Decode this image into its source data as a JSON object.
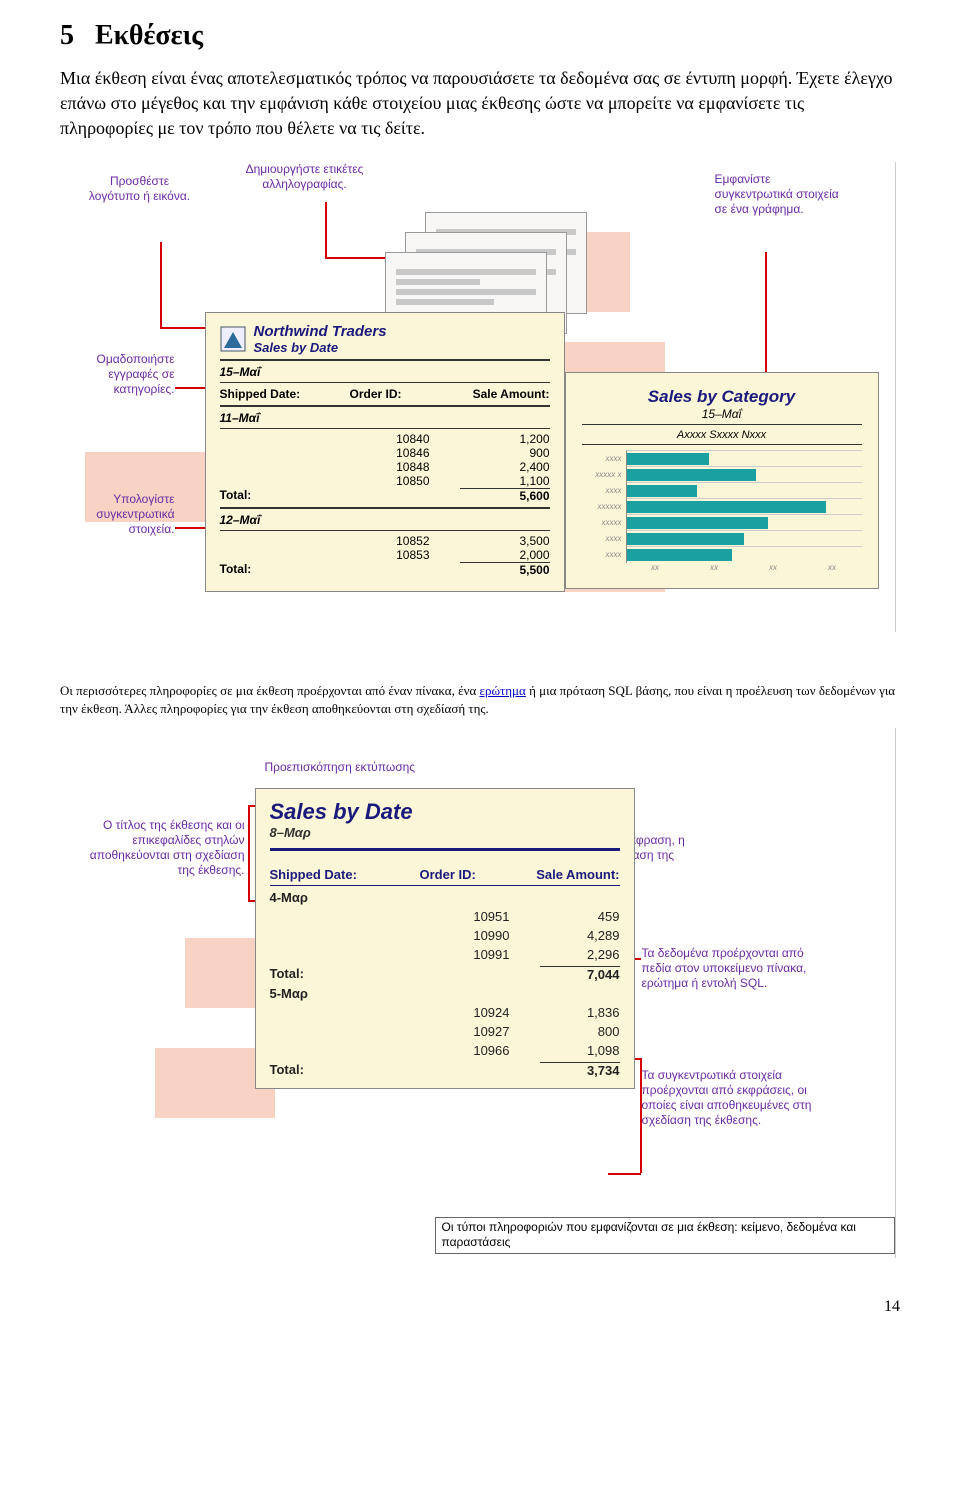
{
  "heading_num": "5",
  "heading_text": "Εκθέσεις",
  "body": "Μια έκθεση είναι ένας αποτελεσματικός τρόπος να παρουσιάσετε τα δεδομένα σας σε έντυπη μορφή. Έχετε έλεγχο επάνω στο μέγεθος και την εμφάνιση κάθε στοιχείου μιας έκθεσης ώστε να μπορείτε να εμφανίσετε τις πληροφορίες με τον τρόπο που θέλετε να τις δείτε.",
  "fig1": {
    "callouts": {
      "logo": "Προσθέστε λογότυπο ή εικόνα.",
      "labels": "Δημιουργήστε ετικέτες αλληλογραφίας.",
      "chart": "Εμφανίστε συγκεντρωτικά στοιχεία σε ένα γράφημα.",
      "group": "Ομαδοποιήστε εγγραφές σε κατηγορίες.",
      "totals": "Υπολογίστε συγκεντρωτικά στοιχεία."
    },
    "report": {
      "title1": "Northwind Traders",
      "title2": "Sales by Date",
      "date": "15–Μαΐ",
      "col1": "Shipped Date:",
      "col2": "Order ID:",
      "col3": "Sale Amount:",
      "g1": {
        "date": "11–Μαΐ",
        "rows": [
          {
            "id": "10840",
            "amt": "1,200"
          },
          {
            "id": "10846",
            "amt": "900"
          },
          {
            "id": "10848",
            "amt": "2,400"
          },
          {
            "id": "10850",
            "amt": "1,100"
          }
        ],
        "total_label": "Total:",
        "total": "5,600"
      },
      "g2": {
        "date": "12–Μαΐ",
        "rows": [
          {
            "id": "10852",
            "amt": "3,500"
          },
          {
            "id": "10853",
            "amt": "2,000"
          }
        ],
        "total_label": "Total:",
        "total": "5,500"
      }
    },
    "chartcard": {
      "title": "Sales by Category",
      "sub": "15–Μαΐ",
      "legend": "Axxxx Sxxxx Nxxx",
      "colors": {
        "bar": "#1aa0a0",
        "bg": "#fcf6d9"
      },
      "bars": [
        {
          "label": "xxxx",
          "pct": 35
        },
        {
          "label": "xxxxx x",
          "pct": 55
        },
        {
          "label": "xxxx",
          "pct": 30
        },
        {
          "label": "xxxxxx",
          "pct": 85
        },
        {
          "label": "xxxxx",
          "pct": 60
        },
        {
          "label": "xxxx",
          "pct": 50
        },
        {
          "label": "xxxx",
          "pct": 45
        }
      ],
      "xticks": [
        "xx",
        "xx",
        "xx",
        "xx"
      ]
    }
  },
  "para2_pre": "Οι περισσότερες πληροφορίες σε μια έκθεση προέρχονται από έναν πίνακα, ένα ",
  "para2_link": "ερώτημα",
  "para2_post": " ή μια πρόταση SQL βάσης, που είναι η προέλευση των δεδομένων για την έκθεση. Άλλες πληροφορίες για την έκθεση αποθηκεύονται στη σχεδίασή της.",
  "fig2": {
    "prev_label": "Προεπισκόπηση εκτύπωσης",
    "callouts": {
      "title": "Ο τίτλος της έκθεσης και οι επικεφαλίδες στηλών αποθηκεύονται στη σχεδίαση της έκθεσης.",
      "date": "Η ημερομηνία προέρχεται από μια έκφραση, η οποία είναι αποθηκευμένη στη σχεδίαση της έκθεσης.",
      "data": "Τα δεδομένα προέρχονται από πεδία στον υποκείμενο πίνακα, ερώτημα ή εντολή SQL.",
      "totals": "Τα συγκεντρωτικά στοιχεία προέρχονται από εκφράσεις, οι οποίες είναι αποθηκευμένες στη σχεδίαση της έκθεσης."
    },
    "report": {
      "title": "Sales by Date",
      "date": "8–Μαρ",
      "col1": "Shipped Date:",
      "col2": "Order ID:",
      "col3": "Sale Amount:",
      "g1": {
        "date": "4-Μαρ",
        "rows": [
          {
            "id": "10951",
            "amt": "459"
          },
          {
            "id": "10990",
            "amt": "4,289"
          },
          {
            "id": "10991",
            "amt": "2,296"
          }
        ],
        "total_label": "Total:",
        "total": "7,044"
      },
      "g2": {
        "date": "5-Μαρ",
        "rows": [
          {
            "id": "10924",
            "amt": "1,836"
          },
          {
            "id": "10927",
            "amt": "800"
          },
          {
            "id": "10966",
            "amt": "1,098"
          }
        ],
        "total_label": "Total:",
        "total": "3,734"
      }
    },
    "footer": "Οι τύποι πληροφοριών που εμφανίζονται σε μια έκθεση: κείμενο, δεδομένα και παραστάσεις"
  },
  "pagenum": "14"
}
